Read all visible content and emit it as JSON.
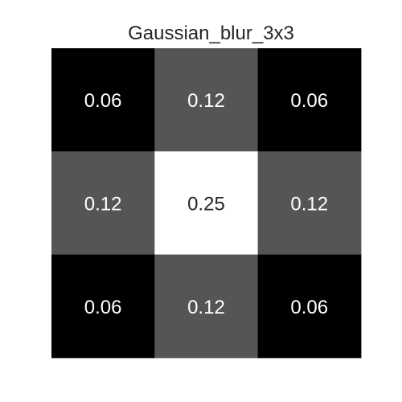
{
  "chart_data": {
    "type": "heatmap",
    "title": "Gaussian_blur_3x3",
    "rows": 3,
    "cols": 3,
    "values": [
      [
        0.0625,
        0.125,
        0.0625
      ],
      [
        0.125,
        0.25,
        0.125
      ],
      [
        0.0625,
        0.125,
        0.0625
      ]
    ],
    "labels": [
      [
        "0.06",
        "0.12",
        "0.06"
      ],
      [
        "0.12",
        "0.25",
        "0.12"
      ],
      [
        "0.06",
        "0.12",
        "0.06"
      ]
    ],
    "colormap": "gray",
    "vmin": 0.0625,
    "vmax": 0.25,
    "text_color_on_dark": "#ffffff",
    "text_color_on_light": "#262626",
    "grid": false,
    "legend": "none"
  }
}
